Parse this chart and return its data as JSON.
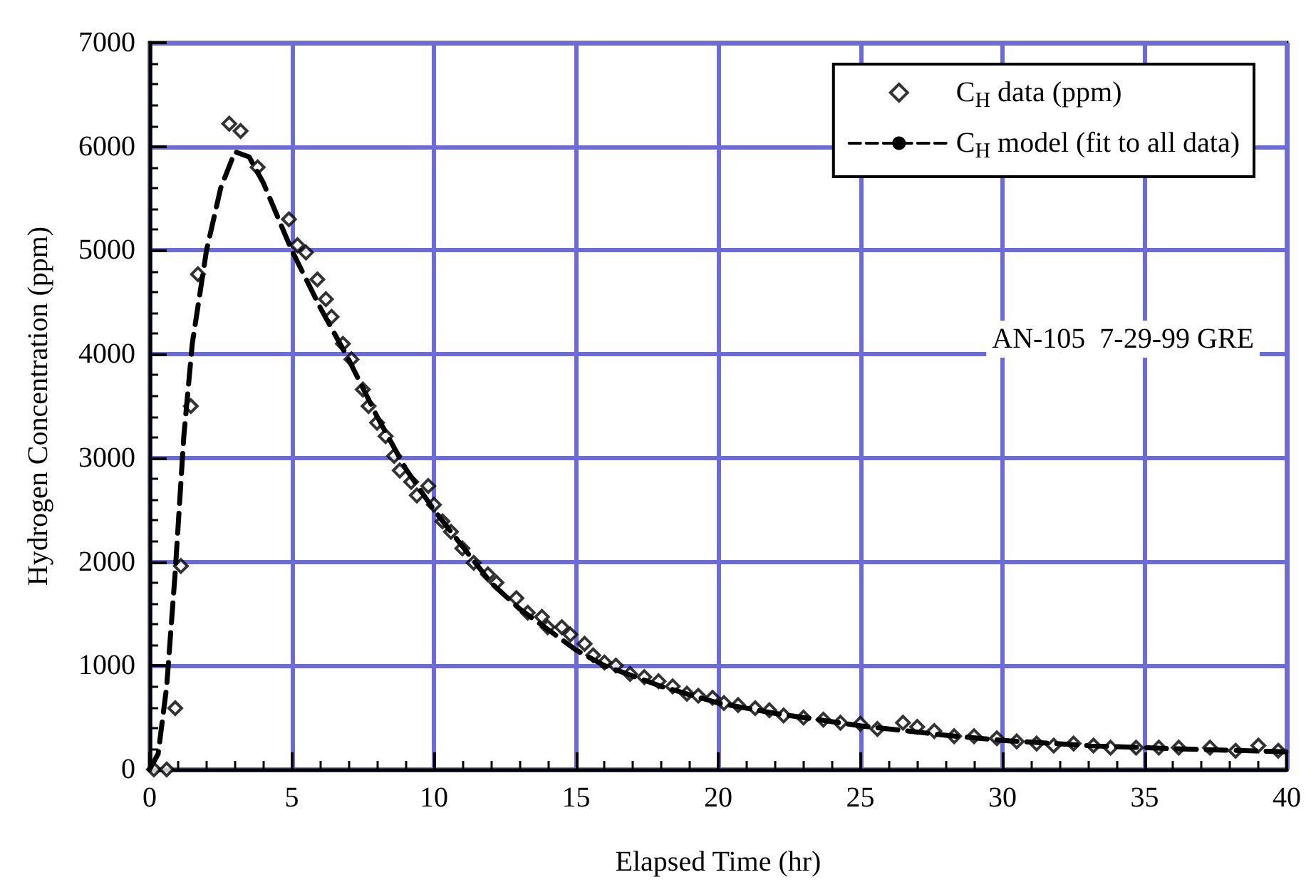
{
  "chart_data": {
    "type": "scatter",
    "xlabel": "Elapsed Time (hr)",
    "ylabel": "Hydrogen Concentration (ppm)",
    "annotations": [
      "AN-105  7-29-99 GRE"
    ],
    "xlim": [
      0,
      40
    ],
    "xticks": [
      0,
      5,
      10,
      15,
      20,
      25,
      30,
      35,
      40
    ],
    "ylim": [
      0,
      7000
    ],
    "yticks": [
      0,
      1000,
      2000,
      3000,
      4000,
      5000,
      6000,
      7000
    ],
    "grid": true,
    "legend": "top right",
    "series": [
      {
        "name": "C$_{H}$ data (ppm)",
        "type": "scatter",
        "marker": "diamond",
        "color": "#000000",
        "x": [
          0.15,
          0.6,
          0.9,
          1.1,
          1.45,
          1.7,
          2.8,
          3.2,
          3.8,
          4.9,
          5.2,
          5.5,
          5.9,
          6.2,
          6.4,
          6.8,
          7.1,
          7.5,
          7.7,
          8.0,
          8.3,
          8.6,
          8.8,
          9.2,
          9.4,
          9.8,
          10.0,
          10.3,
          10.6,
          11.0,
          11.4,
          11.9,
          12.2,
          12.9,
          13.3,
          13.8,
          14.0,
          14.5,
          14.8,
          15.3,
          15.6,
          16.0,
          16.4,
          16.9,
          17.4,
          17.9,
          18.4,
          18.9,
          19.3,
          19.8,
          20.2,
          20.7,
          21.3,
          21.8,
          22.3,
          23.0,
          23.7,
          24.3,
          25.0,
          25.6,
          26.5,
          27.0,
          27.6,
          28.3,
          29.0,
          29.8,
          30.5,
          31.2,
          31.8,
          32.5,
          33.2,
          33.8,
          34.7,
          35.5,
          36.2,
          37.3,
          38.2,
          39.0,
          39.7
        ],
        "values": [
          0,
          0,
          590,
          1960,
          3500,
          4770,
          6220,
          6150,
          5800,
          5300,
          5050,
          4980,
          4720,
          4530,
          4360,
          4100,
          3950,
          3660,
          3500,
          3340,
          3210,
          3020,
          2880,
          2770,
          2640,
          2730,
          2550,
          2390,
          2290,
          2130,
          1990,
          1880,
          1800,
          1650,
          1510,
          1470,
          1370,
          1370,
          1300,
          1210,
          1100,
          1030,
          1000,
          920,
          890,
          850,
          800,
          730,
          710,
          690,
          640,
          620,
          590,
          570,
          520,
          500,
          480,
          450,
          440,
          390,
          450,
          410,
          370,
          320,
          320,
          300,
          270,
          250,
          230,
          250,
          230,
          210,
          210,
          210,
          210,
          210,
          180,
          230,
          180
        ]
      },
      {
        "name": "C$_{H}$ model (fit to all data)",
        "type": "line",
        "marker": "none",
        "line_style": "dashed",
        "color": "#000000",
        "x": [
          0,
          0.3,
          0.6,
          0.9,
          1.2,
          1.5,
          2,
          2.5,
          3,
          3.5,
          4,
          5,
          6,
          7,
          8,
          9,
          10,
          11,
          12,
          13,
          14,
          15,
          16,
          18,
          20,
          22,
          25,
          28,
          30,
          33,
          36,
          40
        ],
        "values": [
          0,
          150,
          800,
          1900,
          3200,
          4100,
          5000,
          5600,
          5950,
          5900,
          5650,
          5000,
          4450,
          3950,
          3400,
          2900,
          2500,
          2150,
          1800,
          1550,
          1350,
          1150,
          1000,
          800,
          640,
          540,
          420,
          330,
          280,
          230,
          200,
          170
        ]
      }
    ]
  }
}
